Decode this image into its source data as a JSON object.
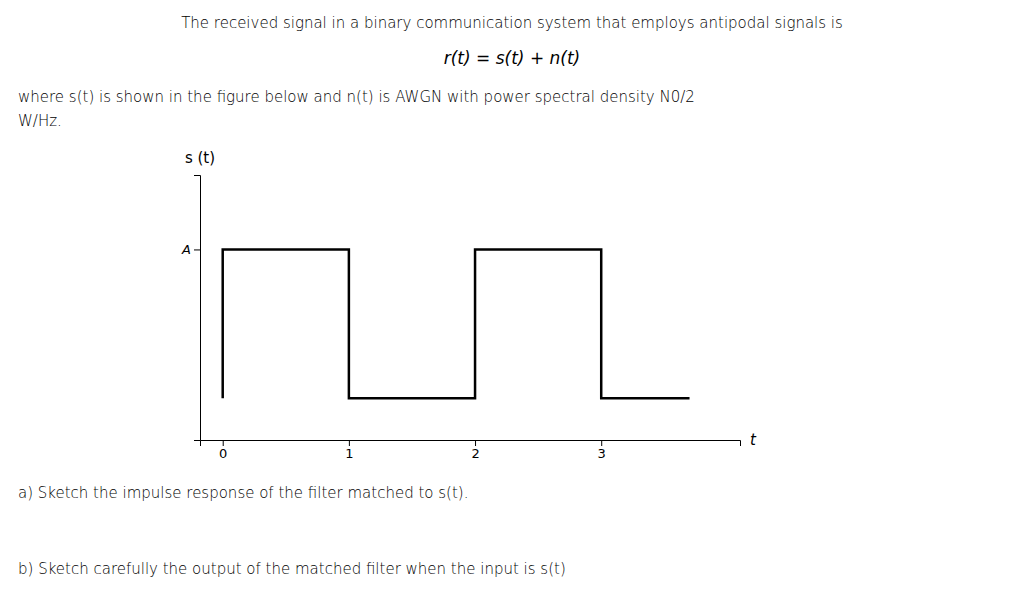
{
  "chart_data": {
    "type": "line",
    "title": "The received signal in a binary communication system that employs antipodal signals is",
    "subtitle": "r(t) = s(t) + n(t)",
    "annotations": [
      "where s(t) is shown in the figure below and n(t) is AWGN with power spectral density N0/2",
      "W/Hz.",
      "a) Sketch the impulse response of the filter matched to s(t).",
      "b) Sketch carefully  the output of the matched filter when the input is s(t)"
    ],
    "x_label": "t",
    "y_label": "s (t)",
    "x": [
      0,
      0,
      1,
      1,
      2,
      2,
      3,
      3,
      3.7
    ],
    "values": [
      0,
      1,
      1,
      0,
      0,
      1,
      1,
      0,
      0
    ],
    "color": "#000000",
    "xlim": [
      -0.18,
      4.1
    ],
    "ylim": [
      -0.28,
      1.5
    ],
    "xticks": [
      0,
      1,
      2,
      3
    ],
    "yticks": [
      {
        "value": 1.0,
        "label": "A"
      }
    ],
    "grid": false
  }
}
